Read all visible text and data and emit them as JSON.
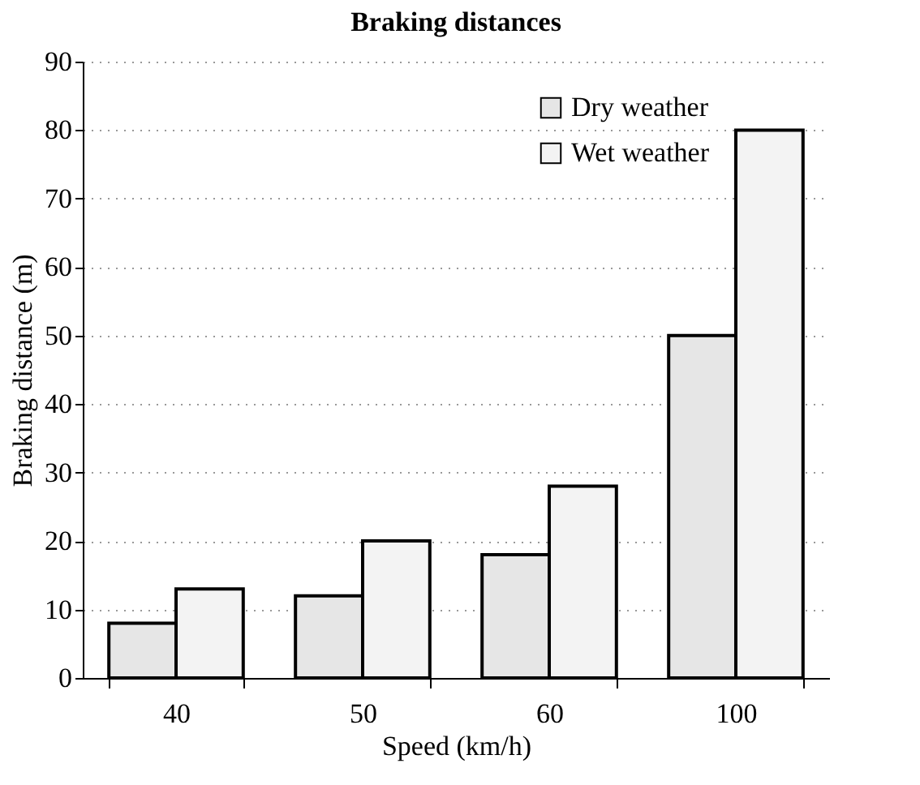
{
  "chart_data": {
    "type": "bar",
    "title": "Braking distances",
    "xlabel": "Speed (km/h)",
    "ylabel": "Braking distance (m)",
    "categories": [
      "40",
      "50",
      "60",
      "100"
    ],
    "series": [
      {
        "name": "Dry weather",
        "color": "#e6e6e6",
        "values": [
          8,
          12,
          18,
          50
        ]
      },
      {
        "name": "Wet weather",
        "color": "#f3f3f3",
        "values": [
          13,
          20,
          28,
          80
        ]
      }
    ],
    "ylim": [
      0,
      90
    ],
    "yticks": [
      0,
      10,
      20,
      30,
      40,
      50,
      60,
      70,
      80,
      90
    ],
    "grid": "y",
    "legend": "top right"
  }
}
